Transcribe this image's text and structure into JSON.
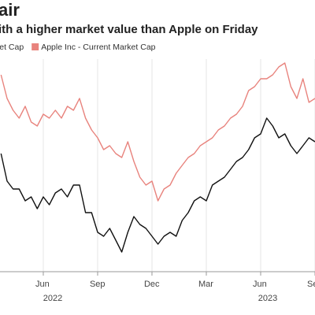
{
  "chart_data": {
    "type": "line",
    "title": "air",
    "subtitle": "ith a higher market value than Apple on Friday",
    "categories": [
      null,
      null,
      null,
      null,
      null,
      null,
      null,
      "Jun",
      null,
      null,
      null,
      null,
      null,
      null,
      null,
      null,
      "Sep",
      null,
      null,
      null,
      null,
      null,
      null,
      null,
      null,
      "Dec",
      null,
      null,
      null,
      null,
      null,
      null,
      null,
      null,
      "Mar",
      null,
      null,
      null,
      null,
      null,
      null,
      null,
      null,
      "Jun",
      null,
      null,
      null,
      null,
      null,
      null,
      null,
      null,
      "Se"
    ],
    "x_group_labels": [
      "2022",
      "2023"
    ],
    "series": [
      {
        "name": "ket Cap",
        "color": "#111111",
        "values": [
          145,
          110,
          100,
          100,
          85,
          90,
          75,
          90,
          80,
          95,
          100,
          90,
          105,
          105,
          70,
          70,
          45,
          40,
          50,
          35,
          20,
          45,
          65,
          55,
          50,
          40,
          30,
          40,
          45,
          40,
          60,
          70,
          85,
          90,
          85,
          105,
          110,
          115,
          125,
          135,
          140,
          150,
          165,
          170,
          190,
          180,
          165,
          170,
          155,
          145,
          155,
          165,
          160
        ]
      },
      {
        "name": "Apple Inc - Current Market Cap",
        "color": "#e8837d",
        "values": [
          245,
          215,
          200,
          190,
          205,
          185,
          180,
          195,
          190,
          200,
          190,
          205,
          200,
          215,
          190,
          175,
          165,
          150,
          155,
          145,
          140,
          160,
          135,
          115,
          105,
          110,
          85,
          100,
          105,
          120,
          130,
          140,
          145,
          155,
          160,
          165,
          175,
          180,
          190,
          195,
          205,
          225,
          230,
          240,
          240,
          245,
          255,
          260,
          230,
          215,
          240,
          210,
          215
        ]
      }
    ],
    "ylim": [
      0,
      300
    ],
    "grid": true
  }
}
